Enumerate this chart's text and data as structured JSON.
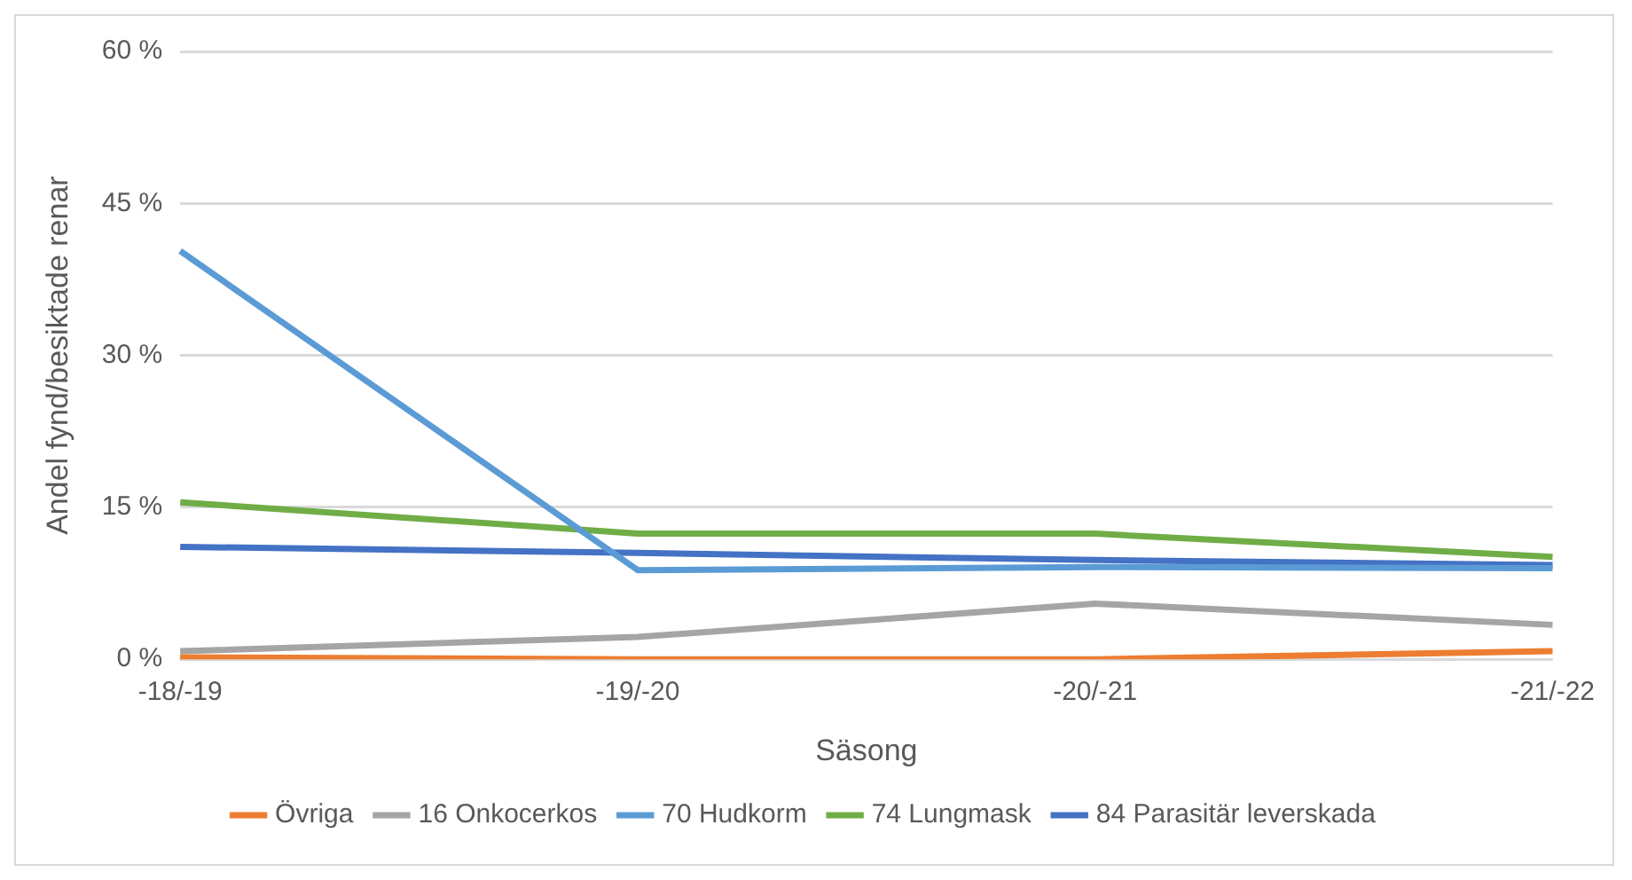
{
  "chart_data": {
    "type": "line",
    "xlabel": "Säsong",
    "ylabel": "Andel fynd/besiktade renar",
    "categories": [
      "-18/-19",
      "-19/-20",
      "-20/-21",
      "-21/-22"
    ],
    "series": [
      {
        "name": "Övriga",
        "color": "#ed7d31",
        "values": [
          0.2,
          0,
          0,
          0.8
        ]
      },
      {
        "name": "16 Onkocerkos",
        "color": "#a5a5a5",
        "values": [
          0.8,
          2.2,
          5.5,
          3.4
        ]
      },
      {
        "name": "70 Hudkorm",
        "color": "#5b9bd5",
        "values": [
          40.3,
          8.8,
          9.1,
          9
        ]
      },
      {
        "name": "74 Lungmask",
        "color": "#70ad47",
        "values": [
          15.5,
          12.4,
          12.4,
          10.1
        ]
      },
      {
        "name": "84 Parasitär leverskada",
        "color": "#4472c4",
        "values": [
          11.1,
          10.5,
          9.8,
          9.3
        ]
      }
    ],
    "ylim": [
      0,
      60
    ],
    "yticks": [
      {
        "value": 0,
        "label": "0 %"
      },
      {
        "value": 15,
        "label": "15 %"
      },
      {
        "value": 30,
        "label": "30 %"
      },
      {
        "value": 45,
        "label": "45 %"
      },
      {
        "value": 60,
        "label": "60 %"
      }
    ],
    "grid": "y",
    "legend": "bottom",
    "marker": "none",
    "line_style": "solid"
  }
}
